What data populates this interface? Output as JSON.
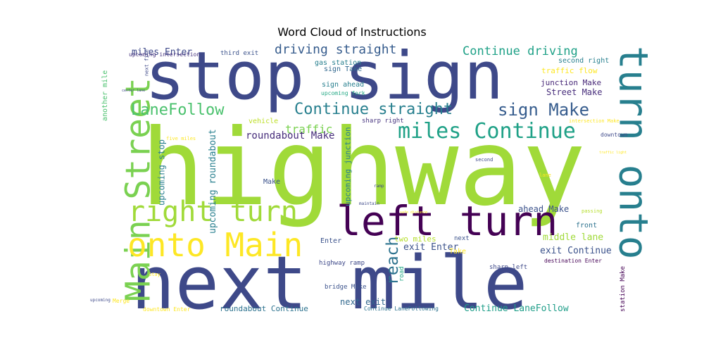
{
  "chart_data": {
    "type": "wordcloud",
    "title": "Word Cloud of Instructions",
    "words": [
      {
        "text": "highway",
        "weight": 1.0,
        "color": "#a0da39"
      },
      {
        "text": "next mile",
        "weight": 0.82,
        "color": "#3e4989"
      },
      {
        "text": "stop sign",
        "weight": 0.7,
        "color": "#3e4989"
      },
      {
        "text": "left turn",
        "weight": 0.47,
        "color": "#440154"
      },
      {
        "text": "turn onto",
        "weight": 0.44,
        "color": "#277f8e"
      },
      {
        "text": "Main Street",
        "weight": 0.38,
        "color": "#7ad151"
      },
      {
        "text": "onto Main",
        "weight": 0.36,
        "color": "#fde725"
      },
      {
        "text": "right turn",
        "weight": 0.32,
        "color": "#a0da39"
      },
      {
        "text": "miles Continue",
        "weight": 0.26,
        "color": "#1fa187"
      },
      {
        "text": "sign Make",
        "weight": 0.21,
        "color": "#365c8d"
      },
      {
        "text": "Continue straight",
        "weight": 0.19,
        "color": "#277f8e"
      },
      {
        "text": "LaneFollow",
        "weight": 0.19,
        "color": "#4ac16d"
      },
      {
        "text": "reach",
        "weight": 0.19,
        "color": "#2c728e"
      },
      {
        "text": "driving straight",
        "weight": 0.15,
        "color": "#365c8d"
      },
      {
        "text": "Continue driving",
        "weight": 0.15,
        "color": "#1fa187"
      },
      {
        "text": "traffic",
        "weight": 0.13,
        "color": "#7ad151"
      },
      {
        "text": "roundabout Make",
        "weight": 0.12,
        "color": "#472d7b"
      },
      {
        "text": "upcoming roundabout",
        "weight": 0.11,
        "color": "#277f8e"
      },
      {
        "text": "upcoming stop",
        "weight": 0.1,
        "color": "#277f8e"
      },
      {
        "text": "upcoming junction",
        "weight": 0.1,
        "color": "#277f8e"
      },
      {
        "text": "another mile",
        "weight": 0.09,
        "color": "#4ac16d"
      },
      {
        "text": "miles Enter",
        "weight": 0.12,
        "color": "#3e4989"
      },
      {
        "text": "exit Continue",
        "weight": 0.12,
        "color": "#3b528b"
      },
      {
        "text": "ahead Make",
        "weight": 0.11,
        "color": "#3b528b"
      },
      {
        "text": "middle lane",
        "weight": 0.11,
        "color": "#a0da39"
      },
      {
        "text": "Continue LaneFollow",
        "weight": 0.11,
        "color": "#1f9e89"
      },
      {
        "text": "roundabout Continue",
        "weight": 0.1,
        "color": "#2c728e"
      },
      {
        "text": "next exit",
        "weight": 0.11,
        "color": "#31688e"
      },
      {
        "text": "exit Enter",
        "weight": 0.11,
        "color": "#3b528b"
      },
      {
        "text": "Street Make",
        "weight": 0.11,
        "color": "#472d7b"
      },
      {
        "text": "two miles",
        "weight": 0.1,
        "color": "#b5de2b"
      },
      {
        "text": "traffic flow",
        "weight": 0.1,
        "color": "#fde725"
      },
      {
        "text": "junction Make",
        "weight": 0.1,
        "color": "#482878"
      },
      {
        "text": "second right",
        "weight": 0.09,
        "color": "#277f8e"
      },
      {
        "text": "sign ahead",
        "weight": 0.09,
        "color": "#277f8e"
      },
      {
        "text": "gas station",
        "weight": 0.09,
        "color": "#277f8e"
      },
      {
        "text": "sign Take",
        "weight": 0.09,
        "color": "#31688e"
      },
      {
        "text": "vehicle",
        "weight": 0.09,
        "color": "#bddf26"
      },
      {
        "text": "station Make",
        "weight": 0.08,
        "color": "#440154"
      },
      {
        "text": "front",
        "weight": 0.09,
        "color": "#2c728e"
      },
      {
        "text": "Enter",
        "weight": 0.09,
        "color": "#3b528b"
      },
      {
        "text": "Make",
        "weight": 0.09,
        "color": "#3b528b"
      },
      {
        "text": "sharp right",
        "weight": 0.08,
        "color": "#46337e"
      },
      {
        "text": "upcoming intersection",
        "weight": 0.07,
        "color": "#46337e"
      },
      {
        "text": "third exit",
        "weight": 0.08,
        "color": "#3b528b"
      },
      {
        "text": "highway ramp",
        "weight": 0.08,
        "color": "#3e4989"
      },
      {
        "text": "Take",
        "weight": 0.09,
        "color": "#fde725"
      },
      {
        "text": "bridge Make",
        "weight": 0.08,
        "color": "#3b528b"
      },
      {
        "text": "next",
        "weight": 0.08,
        "color": "#3b528b"
      },
      {
        "text": "sharp left",
        "weight": 0.07,
        "color": "#3e4989"
      },
      {
        "text": "destination Enter",
        "weight": 0.07,
        "color": "#440154"
      },
      {
        "text": "road",
        "weight": 0.08,
        "color": "#22a884"
      },
      {
        "text": "upcoming fork",
        "weight": 0.07,
        "color": "#22a884"
      },
      {
        "text": "Merge",
        "weight": 0.07,
        "color": "#fde725"
      },
      {
        "text": "downtown Enter",
        "weight": 0.07,
        "color": "#fde725"
      },
      {
        "text": "downtown",
        "weight": 0.07,
        "color": "#3e4989"
      },
      {
        "text": "five miles",
        "weight": 0.06,
        "color": "#fde725"
      },
      {
        "text": "second",
        "weight": 0.06,
        "color": "#3e4989"
      },
      {
        "text": "lane",
        "weight": 0.06,
        "color": "#fde725"
      },
      {
        "text": "passing",
        "weight": 0.06,
        "color": "#b5de2b"
      },
      {
        "text": "Stay",
        "weight": 0.06,
        "color": "#fde725"
      },
      {
        "text": "next five",
        "weight": 0.06,
        "color": "#3e4989"
      },
      {
        "text": "intersection Make",
        "weight": 0.06,
        "color": "#fde725"
      },
      {
        "text": "center lane",
        "weight": 0.05,
        "color": "#3e4989"
      },
      {
        "text": "upcoming",
        "weight": 0.05,
        "color": "#3e4989"
      },
      {
        "text": "maintain",
        "weight": 0.05,
        "color": "#3e4989"
      },
      {
        "text": "ramp",
        "weight": 0.05,
        "color": "#3e4989"
      },
      {
        "text": "traffic light",
        "weight": 0.05,
        "color": "#fde725"
      },
      {
        "text": "safe distance",
        "weight": 0.05,
        "color": "#fde725"
      },
      {
        "text": "Continue LaneFollowing",
        "weight": 0.07,
        "color": "#2c728e"
      }
    ]
  }
}
